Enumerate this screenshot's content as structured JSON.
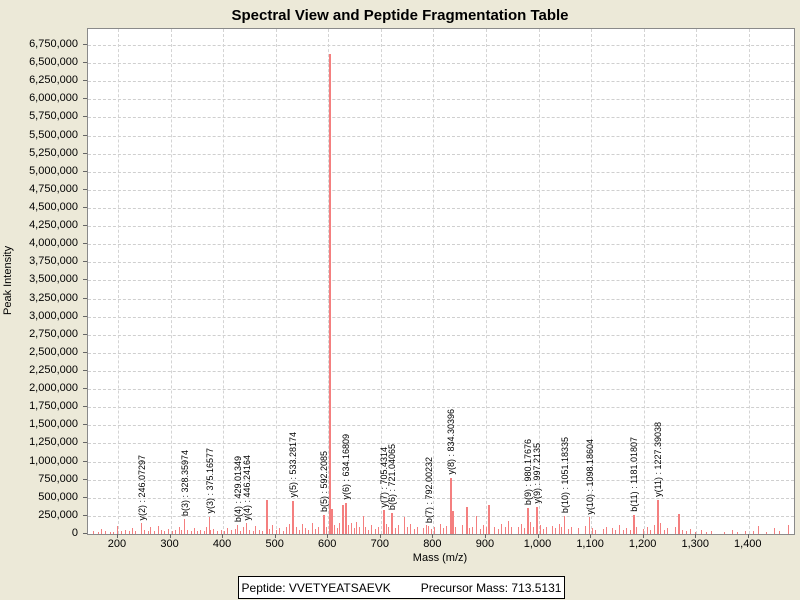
{
  "title": "Spectral View and Peptide Fragmentation Table",
  "footer": {
    "peptide_label": "Peptide: VVETYEATSAEVK",
    "precursor_label": "Precursor Mass: 713.5131"
  },
  "colors": {
    "background": "#ece9d8",
    "plot_background": "#ffffff",
    "peak": "#f47f7f",
    "gridline": "#cfcfcf",
    "text": "#000000"
  },
  "chart_data": {
    "type": "bar",
    "subtype": "mass-spectrum",
    "title": "Spectral View and Peptide Fragmentation Table",
    "xlabel": "Mass (m/z)",
    "ylabel": "Peak Intensity",
    "xlim": [
      143,
      1486
    ],
    "ylim": [
      0,
      6750000
    ],
    "grid": "dashed",
    "x_ticks": [
      200,
      300,
      400,
      500,
      600,
      700,
      800,
      900,
      1000,
      1100,
      1200,
      1300,
      1400
    ],
    "x_tick_labels": [
      "200",
      "300",
      "400",
      "500",
      "600",
      "700",
      "800",
      "900",
      "1,000",
      "1,100",
      "1,200",
      "1,300",
      "1,400"
    ],
    "y_tick_step": 250000,
    "y_tick_labels": [
      "6,750,000",
      "6,500,000",
      "6,250,000",
      "6,000,000",
      "5,750,000",
      "5,500,000",
      "5,250,000",
      "5,000,000",
      "4,750,000",
      "4,500,000",
      "4,250,000",
      "4,000,000",
      "3,750,000",
      "3,500,000",
      "3,250,000",
      "3,000,000",
      "2,750,000",
      "2,500,000",
      "2,250,000",
      "2,000,000",
      "1,750,000",
      "1,500,000",
      "1,250,000",
      "1,000,000",
      "750,000",
      "500,000",
      "250,000",
      "0"
    ],
    "annotated_peaks": [
      {
        "ion": "y(2)",
        "label": "y(2) : 246.07297",
        "mz": 246.07297,
        "intensity": 150000
      },
      {
        "ion": "b(3)",
        "label": "b(3) : 328.35974",
        "mz": 328.35974,
        "intensity": 205000
      },
      {
        "ion": "y(3)",
        "label": "y(3) : 375.16577",
        "mz": 375.16577,
        "intensity": 235000
      },
      {
        "ion": "b(4)",
        "label": "b(4) : 429.01349",
        "mz": 429.01349,
        "intensity": 125000
      },
      {
        "ion": "y(4)",
        "label": "y(4) : 446.24164",
        "mz": 446.24164,
        "intensity": 150000
      },
      {
        "ion": "y(5)",
        "label": "y(5) : 533.28174",
        "mz": 533.28174,
        "intensity": 455000
      },
      {
        "ion": "b(5)",
        "label": "b(5) : 592.2085",
        "mz": 592.2085,
        "intensity": 260000
      },
      {
        "ion": "y(6)",
        "label": "y(6) : 634.16809",
        "mz": 634.16809,
        "intensity": 430000
      },
      {
        "ion": "y(7)",
        "label": "y(7) : 705.4314",
        "mz": 705.4314,
        "intensity": 330000
      },
      {
        "ion": "b(6)",
        "label": "b(6) : 721.04065",
        "mz": 721.04065,
        "intensity": 290000
      },
      {
        "ion": "b(7)",
        "label": "b(7) : 792.00232",
        "mz": 792.00232,
        "intensity": 110000
      },
      {
        "ion": "y(8)",
        "label": "y(8) : 834.30396",
        "mz": 834.30396,
        "intensity": 775000
      },
      {
        "ion": "b(9)",
        "label": "b(9) : 980.17676",
        "mz": 980.17676,
        "intensity": 360000
      },
      {
        "ion": "y(9)",
        "label": "y(9) : 997.2135",
        "mz": 997.2135,
        "intensity": 380000
      },
      {
        "ion": "b(10)",
        "label": "b(10) : 1051.18335",
        "mz": 1051.18335,
        "intensity": 250000
      },
      {
        "ion": "y(10)",
        "label": "y(10) : 1098.18604",
        "mz": 1098.18604,
        "intensity": 230000
      },
      {
        "ion": "b(11)",
        "label": "b(11) : 1181.01807",
        "mz": 1181.01807,
        "intensity": 260000
      },
      {
        "ion": "y(11)",
        "label": "y(11) : 1227.39038",
        "mz": 1227.39038,
        "intensity": 470000
      }
    ],
    "base_peak": {
      "mz": 604,
      "intensity": 6630000
    },
    "peaks": [
      [
        155,
        40000
      ],
      [
        163,
        30000
      ],
      [
        170,
        72000
      ],
      [
        178,
        36000
      ],
      [
        186,
        26000
      ],
      [
        193,
        32000
      ],
      [
        200,
        110000
      ],
      [
        207,
        42000
      ],
      [
        215,
        62000
      ],
      [
        222,
        36000
      ],
      [
        228,
        82000
      ],
      [
        235,
        46000
      ],
      [
        252,
        52000
      ],
      [
        258,
        36000
      ],
      [
        263,
        92000
      ],
      [
        270,
        46000
      ],
      [
        278,
        112000
      ],
      [
        284,
        62000
      ],
      [
        290,
        42000
      ],
      [
        297,
        70000
      ],
      [
        304,
        46000
      ],
      [
        310,
        62000
      ],
      [
        317,
        92000
      ],
      [
        322,
        52000
      ],
      [
        333,
        60000
      ],
      [
        340,
        42000
      ],
      [
        347,
        82000
      ],
      [
        352,
        46000
      ],
      [
        358,
        62000
      ],
      [
        365,
        36000
      ],
      [
        370,
        92000
      ],
      [
        377,
        52000
      ],
      [
        383,
        72000
      ],
      [
        390,
        46000
      ],
      [
        397,
        62000
      ],
      [
        404,
        42000
      ],
      [
        410,
        82000
      ],
      [
        417,
        56000
      ],
      [
        424,
        72000
      ],
      [
        434,
        46000
      ],
      [
        440,
        92000
      ],
      [
        452,
        62000
      ],
      [
        458,
        46000
      ],
      [
        463,
        112000
      ],
      [
        470,
        62000
      ],
      [
        476,
        46000
      ],
      [
        483,
        475000
      ],
      [
        489,
        72000
      ],
      [
        495,
        122000
      ],
      [
        502,
        56000
      ],
      [
        508,
        82000
      ],
      [
        515,
        46000
      ],
      [
        521,
        102000
      ],
      [
        527,
        142000
      ],
      [
        540,
        102000
      ],
      [
        546,
        62000
      ],
      [
        552,
        132000
      ],
      [
        558,
        82000
      ],
      [
        564,
        52000
      ],
      [
        570,
        152000
      ],
      [
        576,
        72000
      ],
      [
        582,
        102000
      ],
      [
        598,
        92000
      ],
      [
        604,
        6630000
      ],
      [
        608,
        340000
      ],
      [
        612,
        122000
      ],
      [
        618,
        82000
      ],
      [
        622,
        152000
      ],
      [
        628,
        400000
      ],
      [
        640,
        122000
      ],
      [
        646,
        152000
      ],
      [
        651,
        82000
      ],
      [
        655,
        172000
      ],
      [
        660,
        102000
      ],
      [
        667,
        250000
      ],
      [
        672,
        92000
      ],
      [
        678,
        62000
      ],
      [
        684,
        122000
      ],
      [
        690,
        72000
      ],
      [
        696,
        102000
      ],
      [
        712,
        142000
      ],
      [
        716,
        92000
      ],
      [
        728,
        82000
      ],
      [
        734,
        122000
      ],
      [
        745,
        235000
      ],
      [
        752,
        92000
      ],
      [
        758,
        132000
      ],
      [
        764,
        72000
      ],
      [
        770,
        102000
      ],
      [
        782,
        82000
      ],
      [
        787,
        122000
      ],
      [
        797,
        72000
      ],
      [
        803,
        102000
      ],
      [
        815,
        142000
      ],
      [
        820,
        82000
      ],
      [
        826,
        112000
      ],
      [
        838,
        320000
      ],
      [
        843,
        92000
      ],
      [
        856,
        122000
      ],
      [
        864,
        370000
      ],
      [
        870,
        82000
      ],
      [
        876,
        102000
      ],
      [
        883,
        250000
      ],
      [
        890,
        72000
      ],
      [
        896,
        122000
      ],
      [
        902,
        92000
      ],
      [
        906,
        400000
      ],
      [
        918,
        102000
      ],
      [
        925,
        72000
      ],
      [
        931,
        132000
      ],
      [
        938,
        92000
      ],
      [
        944,
        182000
      ],
      [
        950,
        102000
      ],
      [
        962,
        92000
      ],
      [
        968,
        142000
      ],
      [
        974,
        82000
      ],
      [
        986,
        162000
      ],
      [
        992,
        102000
      ],
      [
        1004,
        122000
      ],
      [
        1010,
        72000
      ],
      [
        1016,
        92000
      ],
      [
        1028,
        112000
      ],
      [
        1034,
        82000
      ],
      [
        1040,
        142000
      ],
      [
        1045,
        92000
      ],
      [
        1058,
        72000
      ],
      [
        1064,
        102000
      ],
      [
        1076,
        82000
      ],
      [
        1090,
        112000
      ],
      [
        1104,
        82000
      ],
      [
        1110,
        62000
      ],
      [
        1124,
        72000
      ],
      [
        1130,
        92000
      ],
      [
        1142,
        82000
      ],
      [
        1148,
        62000
      ],
      [
        1155,
        122000
      ],
      [
        1162,
        52000
      ],
      [
        1168,
        82000
      ],
      [
        1175,
        62000
      ],
      [
        1188,
        92000
      ],
      [
        1200,
        72000
      ],
      [
        1208,
        102000
      ],
      [
        1214,
        62000
      ],
      [
        1221,
        122000
      ],
      [
        1233,
        152000
      ],
      [
        1240,
        62000
      ],
      [
        1247,
        82000
      ],
      [
        1261,
        92000
      ],
      [
        1268,
        280000
      ],
      [
        1275,
        62000
      ],
      [
        1282,
        42000
      ],
      [
        1290,
        72000
      ],
      [
        1300,
        32000
      ],
      [
        1310,
        52000
      ],
      [
        1320,
        26000
      ],
      [
        1330,
        42000
      ],
      [
        1355,
        32000
      ],
      [
        1369,
        62000
      ],
      [
        1380,
        26000
      ],
      [
        1395,
        36000
      ],
      [
        1410,
        42000
      ],
      [
        1420,
        110000
      ],
      [
        1435,
        32000
      ],
      [
        1450,
        82000
      ],
      [
        1460,
        42000
      ],
      [
        1477,
        120000
      ]
    ]
  }
}
